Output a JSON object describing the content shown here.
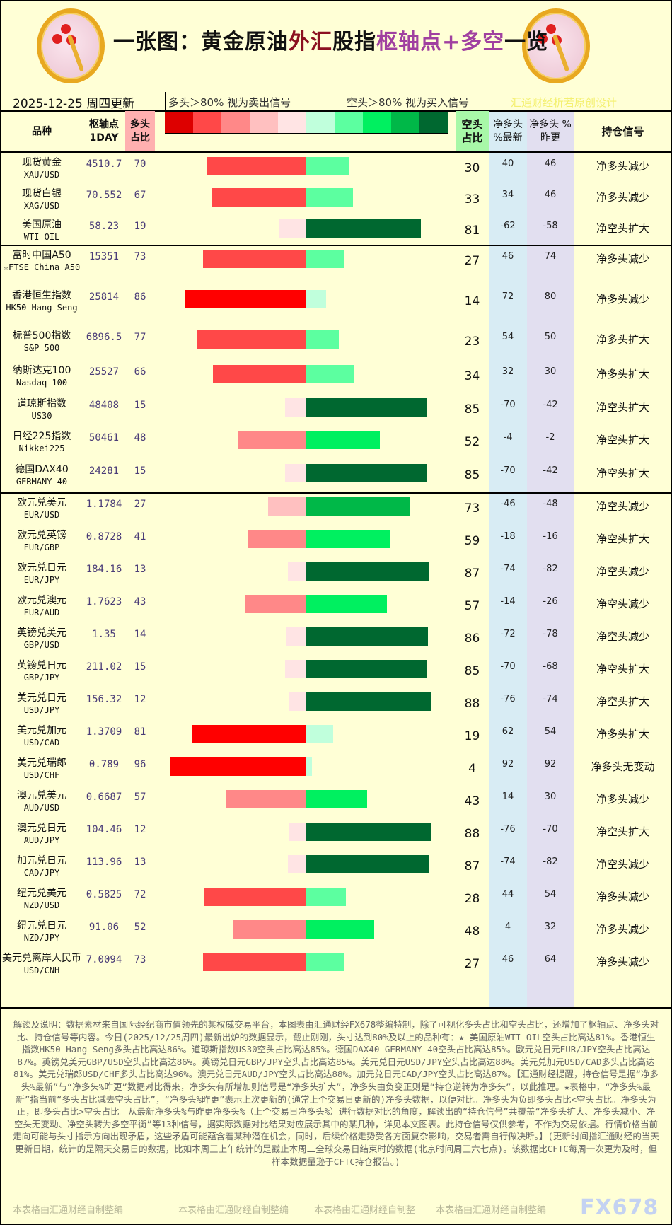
{
  "header": {
    "title_parts": [
      "一张图：黄金原油",
      "外汇",
      "股指",
      "枢轴点+多空",
      "一览"
    ],
    "date": "2025-12-25 周四更新",
    "long_note": "多头＞80% 视为卖出信号",
    "short_note": "空头＞80% 视为买入信号",
    "design_credit": "汇通财经析若原创设计",
    "logo_text": "fx678 yly"
  },
  "columns": {
    "name": "品种",
    "pivot": "枢轴点 1DAY",
    "long": "多头 占比",
    "short": "空头 占比",
    "net_new": "净多头 %最新",
    "net_prev": "净多头 %昨更",
    "signal": "持仓信号"
  },
  "colors": {
    "legend": [
      "#dd0000",
      "#ff4848",
      "#ff8888",
      "#ffc0c0",
      "#ffe4e4",
      "#c0ffdc",
      "#5cffa0",
      "#00f060",
      "#00b848",
      "#006830"
    ],
    "long_header_bg": "#ffb0b0",
    "short_header_bg": "#a8f8a8",
    "net_new_bg": "#d8ecf4",
    "net_prev_bg": "#e2dff0"
  },
  "sections": [
    [
      {
        "name": "现货黄金",
        "code": "XAU/USD",
        "pivot": "4510.7",
        "long": 70,
        "short": 30,
        "net_new": 40,
        "net_prev": 46,
        "signal": "净多头减少"
      },
      {
        "name": "现货白银",
        "code": "XAG/USD",
        "pivot": "70.552",
        "long": 67,
        "short": 33,
        "net_new": 34,
        "net_prev": 46,
        "signal": "净多头减少"
      },
      {
        "name": "美国原油",
        "code": "WTI OIL",
        "pivot": "58.23",
        "long": 19,
        "short": 81,
        "net_new": -62,
        "net_prev": -58,
        "signal": "净空头扩大"
      }
    ],
    [
      {
        "name": "富时中国A50",
        "code": "☆FTSE China A50",
        "pivot": "15351",
        "long": 73,
        "short": 27,
        "net_new": 46,
        "net_prev": 74,
        "signal": "净多头减少"
      },
      {
        "name": "香港恒生指数",
        "code": "HK50 Hang Seng",
        "pivot": "25814",
        "long": 86,
        "short": 14,
        "net_new": 72,
        "net_prev": 80,
        "signal": "净多头减少"
      },
      {
        "name": "标普500指数",
        "code": "S&P 500",
        "pivot": "6896.5",
        "long": 77,
        "short": 23,
        "net_new": 54,
        "net_prev": 50,
        "signal": "净多头扩大"
      },
      {
        "name": "纳斯达克100",
        "code": "Nasdaq 100",
        "pivot": "25527",
        "long": 66,
        "short": 34,
        "net_new": 32,
        "net_prev": 30,
        "signal": "净多头扩大"
      },
      {
        "name": "道琼斯指数",
        "code": "US30",
        "pivot": "48408",
        "long": 15,
        "short": 85,
        "net_new": -70,
        "net_prev": -42,
        "signal": "净空头扩大"
      },
      {
        "name": "日经225指数",
        "code": "Nikkei225",
        "pivot": "50461",
        "long": 48,
        "short": 52,
        "net_new": -4,
        "net_prev": -2,
        "signal": "净空头扩大"
      },
      {
        "name": "德国DAX40",
        "code": "GERMANY 40",
        "pivot": "24281",
        "long": 15,
        "short": 85,
        "net_new": -70,
        "net_prev": -42,
        "signal": "净空头扩大"
      }
    ],
    [
      {
        "name": "欧元兑美元",
        "code": "EUR/USD",
        "pivot": "1.1784",
        "long": 27,
        "short": 73,
        "net_new": -46,
        "net_prev": -48,
        "signal": "净空头减少"
      },
      {
        "name": "欧元兑英镑",
        "code": "EUR/GBP",
        "pivot": "0.8728",
        "long": 41,
        "short": 59,
        "net_new": -18,
        "net_prev": -16,
        "signal": "净空头扩大"
      },
      {
        "name": "欧元兑日元",
        "code": "EUR/JPY",
        "pivot": "184.16",
        "long": 13,
        "short": 87,
        "net_new": -74,
        "net_prev": -82,
        "signal": "净空头减少"
      },
      {
        "name": "欧元兑澳元",
        "code": "EUR/AUD",
        "pivot": "1.7623",
        "long": 43,
        "short": 57,
        "net_new": -14,
        "net_prev": -26,
        "signal": "净空头减少"
      },
      {
        "name": "英镑兑美元",
        "code": "GBP/USD",
        "pivot": "1.35",
        "long": 14,
        "short": 86,
        "net_new": -72,
        "net_prev": -78,
        "signal": "净空头减少"
      },
      {
        "name": "英镑兑日元",
        "code": "GBP/JPY",
        "pivot": "211.02",
        "long": 15,
        "short": 85,
        "net_new": -70,
        "net_prev": -68,
        "signal": "净空头扩大"
      },
      {
        "name": "美元兑日元",
        "code": "USD/JPY",
        "pivot": "156.32",
        "long": 12,
        "short": 88,
        "net_new": -76,
        "net_prev": -74,
        "signal": "净空头扩大"
      },
      {
        "name": "美元兑加元",
        "code": "USD/CAD",
        "pivot": "1.3709",
        "long": 81,
        "short": 19,
        "net_new": 62,
        "net_prev": 54,
        "signal": "净多头扩大"
      },
      {
        "name": "美元兑瑞郎",
        "code": "USD/CHF",
        "pivot": "0.789",
        "long": 96,
        "short": 4,
        "net_new": 92,
        "net_prev": 92,
        "signal": "净多头无变动"
      },
      {
        "name": "澳元兑美元",
        "code": "AUD/USD",
        "pivot": "0.6687",
        "long": 57,
        "short": 43,
        "net_new": 14,
        "net_prev": 30,
        "signal": "净多头减少"
      },
      {
        "name": "澳元兑日元",
        "code": "AUD/JPY",
        "pivot": "104.46",
        "long": 12,
        "short": 88,
        "net_new": -76,
        "net_prev": -70,
        "signal": "净空头扩大"
      },
      {
        "name": "加元兑日元",
        "code": "CAD/JPY",
        "pivot": "113.96",
        "long": 13,
        "short": 87,
        "net_new": -74,
        "net_prev": -82,
        "signal": "净空头减少"
      },
      {
        "name": "纽元兑美元",
        "code": "NZD/USD",
        "pivot": "0.5825",
        "long": 72,
        "short": 28,
        "net_new": 44,
        "net_prev": 54,
        "signal": "净多头减少"
      },
      {
        "name": "纽元兑日元",
        "code": "NZD/JPY",
        "pivot": "91.06",
        "long": 52,
        "short": 48,
        "net_new": 4,
        "net_prev": 32,
        "signal": "净多头减少"
      },
      {
        "name": "美元兑离岸人民币",
        "code": "USD/CNH",
        "pivot": "7.0094",
        "long": 73,
        "short": 27,
        "net_new": 46,
        "net_prev": 64,
        "signal": "净多头减少"
      }
    ]
  ],
  "footer": {
    "text": "解读及说明：数据素材来自国际经纪商市值领先的某权威交易平台，本图表由汇通财经FX678整编特制，除了可视化多头占比和空头占比，还增加了枢轴点、净多头对比、持仓信号等内容。今日(2025/12/25周四)最新出炉的数据显示，截止刚刚，头寸达到80%及以上的品种有：★ 美国原油WTI OIL空头占比高达81%。香港恒生指数HK50 Hang Seng多头占比高达86%。道琼斯指数US30空头占比高达85%。德国DAX40 GERMANY 40空头占比高达85%。欧元兑日元EUR/JPY空头占比高达87%。英镑兑美元GBP/USD空头占比高达86%。英镑兑日元GBP/JPY空头占比高达85%。美元兑日元USD/JPY空头占比高达88%。美元兑加元USD/CAD多头占比高达81%。美元兑瑞郎USD/CHF多头占比高达96%。澳元兑日元AUD/JPY空头占比高达88%。加元兑日元CAD/JPY空头占比高达87%。【汇通财经提醒，持仓信号是据“净多头%最新”与“净多头%昨更”数据对比得来，净多头有所增加则信号是“净多头扩大”，净多头由负变正则是“持仓逆转为净多头”，以此推理。★表格中，“净多头%最新”指当前“多头占比减去空头占比”，“净多头%昨更”表示上次更新的(通常上个交易日更新的)净多头数据，以便对比。净多头为负即多头占比<空头占比。净多头为正，即多头占比>空头占比。从最新净多头%与昨更净多头%（上个交易日净多头%）进行数据对比的角度，解读出的“持仓信号”共覆盖“净多头扩大、净多头减小、净空头无变动、净空头转为多空平衡”等13种信号，据实际数据对比结果对应展示其中的某几种，详见本文图表。此持仓信号仅供参考，不作为交易依据。行情价格当前走向可能与头寸指示方向出现矛盾，这些矛盾可能蕴含着某种潜在机会，同时，后续价格走势受各方面复杂影响，交易者需自行做决断。】(更新时间指汇通财经的当天更新日期，统计的是隔天交易日的数据，比如本周三上午统计的是截止本周二全球交易日结束时的数据(北京时间周三六七点)。该数据比CFTC每周一次更为及时，但样本数据量逊于CFTC持仓报告。)",
    "watermarks": [
      "本表格由汇通财经自制整编",
      "本表格由汇通财经自制整编",
      "本表格由汇通财经自制整",
      "本表格由汇通财经自制整编"
    ],
    "brand": "FX678"
  }
}
